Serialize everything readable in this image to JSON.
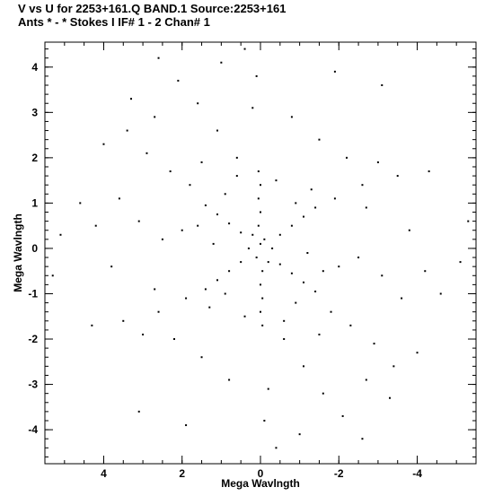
{
  "header": {
    "line1": "V vs U for 2253+161.Q BAND.1   Source:2253+161",
    "line2": "Ants * - *    Stokes I   IF# 1 - 2   Chan# 1"
  },
  "chart_data": {
    "type": "scatter",
    "title": "V vs U for 2253+161.Q BAND.1   Source:2253+161",
    "subtitle": "Ants * - *    Stokes I   IF# 1 - 2   Chan# 1",
    "xlabel": "Mega Wavlngth",
    "ylabel": "Mega Wavlngth",
    "xlim": [
      5.5,
      -5.5
    ],
    "ylim": [
      -4.75,
      4.55
    ],
    "x_reversed": true,
    "x_ticks": [
      4,
      2,
      0,
      -2,
      -4
    ],
    "x_tick_labels": [
      "4",
      "2",
      "0",
      "-2",
      "-4"
    ],
    "y_ticks": [
      4,
      3,
      2,
      1,
      0,
      -1,
      -2,
      -3,
      -4
    ],
    "y_tick_labels": [
      "4",
      "3",
      "2",
      "1",
      "0",
      "-1",
      "-2",
      "-3",
      "-4"
    ],
    "x_minor_step": 0.5,
    "y_minor_step": 0.2,
    "grid": false,
    "legend": "none",
    "marker_color": "#000000",
    "series": [
      {
        "points": [
          [
            0.0,
            0.1
          ],
          [
            -0.1,
            0.2
          ],
          [
            0.1,
            -0.2
          ],
          [
            0.2,
            0.3
          ],
          [
            -0.2,
            -0.3
          ],
          [
            0.3,
            0.0
          ],
          [
            -0.3,
            0.0
          ],
          [
            0.05,
            0.5
          ],
          [
            -0.05,
            -0.5
          ],
          [
            0.0,
            0.8
          ],
          [
            0.0,
            -0.8
          ],
          [
            0.05,
            1.1
          ],
          [
            -0.05,
            -1.1
          ],
          [
            0.0,
            1.4
          ],
          [
            0.0,
            -1.4
          ],
          [
            0.05,
            1.7
          ],
          [
            -0.05,
            -1.7
          ],
          [
            0.5,
            0.35
          ],
          [
            -0.5,
            -0.35
          ],
          [
            0.8,
            0.55
          ],
          [
            -0.8,
            -0.55
          ],
          [
            1.1,
            0.75
          ],
          [
            -1.1,
            -0.75
          ],
          [
            1.4,
            0.95
          ],
          [
            -1.4,
            -0.95
          ],
          [
            0.5,
            -0.3
          ],
          [
            -0.5,
            0.3
          ],
          [
            0.8,
            -0.5
          ],
          [
            -0.8,
            0.5
          ],
          [
            1.1,
            -0.7
          ],
          [
            -1.1,
            0.7
          ],
          [
            1.4,
            -0.9
          ],
          [
            -1.4,
            0.9
          ],
          [
            1.2,
            0.1
          ],
          [
            -1.2,
            -0.1
          ],
          [
            0.9,
            1.2
          ],
          [
            -0.9,
            -1.2
          ],
          [
            1.6,
            0.5
          ],
          [
            -1.6,
            -0.5
          ],
          [
            1.3,
            -1.3
          ],
          [
            -1.3,
            1.3
          ],
          [
            2.0,
            0.4
          ],
          [
            -2.0,
            -0.4
          ],
          [
            1.8,
            1.4
          ],
          [
            -1.8,
            -1.4
          ],
          [
            0.6,
            2.0
          ],
          [
            -0.6,
            -2.0
          ],
          [
            1.9,
            -1.1
          ],
          [
            -1.9,
            1.1
          ],
          [
            2.5,
            0.2
          ],
          [
            -2.5,
            -0.2
          ],
          [
            2.3,
            1.7
          ],
          [
            -2.3,
            -1.7
          ],
          [
            1.1,
            2.6
          ],
          [
            -1.1,
            -2.6
          ],
          [
            2.6,
            -1.4
          ],
          [
            -2.6,
            1.4
          ],
          [
            3.1,
            0.6
          ],
          [
            -3.1,
            -0.6
          ],
          [
            2.9,
            2.1
          ],
          [
            -2.9,
            -2.1
          ],
          [
            1.6,
            3.2
          ],
          [
            -1.6,
            -3.2
          ],
          [
            3.0,
            -1.9
          ],
          [
            -3.0,
            1.9
          ],
          [
            3.6,
            1.1
          ],
          [
            -3.6,
            -1.1
          ],
          [
            3.4,
            2.6
          ],
          [
            -3.4,
            -2.6
          ],
          [
            2.1,
            3.7
          ],
          [
            -2.1,
            -3.7
          ],
          [
            3.8,
            -0.4
          ],
          [
            -3.8,
            0.4
          ],
          [
            4.2,
            0.5
          ],
          [
            -4.2,
            -0.5
          ],
          [
            2.6,
            4.2
          ],
          [
            -2.6,
            -4.2
          ],
          [
            4.6,
            1.0
          ],
          [
            -4.6,
            -1.0
          ],
          [
            5.1,
            0.3
          ],
          [
            -5.1,
            -0.3
          ],
          [
            0.4,
            4.4
          ],
          [
            -0.4,
            -4.4
          ],
          [
            1.0,
            4.1
          ],
          [
            -1.0,
            -4.1
          ],
          [
            -1.9,
            3.9
          ],
          [
            1.9,
            -3.9
          ],
          [
            -3.1,
            3.6
          ],
          [
            3.1,
            -3.6
          ],
          [
            -0.8,
            2.9
          ],
          [
            0.8,
            -2.9
          ],
          [
            -1.5,
            2.4
          ],
          [
            1.5,
            -2.4
          ],
          [
            -2.2,
            2.0
          ],
          [
            2.2,
            -2.0
          ],
          [
            -3.5,
            1.6
          ],
          [
            3.5,
            -1.6
          ],
          [
            -0.4,
            1.5
          ],
          [
            0.4,
            -1.5
          ],
          [
            -0.9,
            1.0
          ],
          [
            0.9,
            -1.0
          ],
          [
            0.6,
            1.6
          ],
          [
            -0.6,
            -1.6
          ],
          [
            1.5,
            1.9
          ],
          [
            -1.5,
            -1.9
          ],
          [
            2.7,
            2.9
          ],
          [
            -2.7,
            -2.9
          ],
          [
            3.3,
            3.3
          ],
          [
            -3.3,
            -3.3
          ],
          [
            4.0,
            2.3
          ],
          [
            -4.0,
            -2.3
          ],
          [
            -4.3,
            1.7
          ],
          [
            4.3,
            -1.7
          ],
          [
            0.2,
            3.1
          ],
          [
            -0.2,
            -3.1
          ],
          [
            0.1,
            3.8
          ],
          [
            -0.1,
            -3.8
          ],
          [
            -2.7,
            0.9
          ],
          [
            2.7,
            -0.9
          ],
          [
            5.3,
            -0.6
          ],
          [
            -5.3,
            0.6
          ]
        ]
      }
    ]
  }
}
